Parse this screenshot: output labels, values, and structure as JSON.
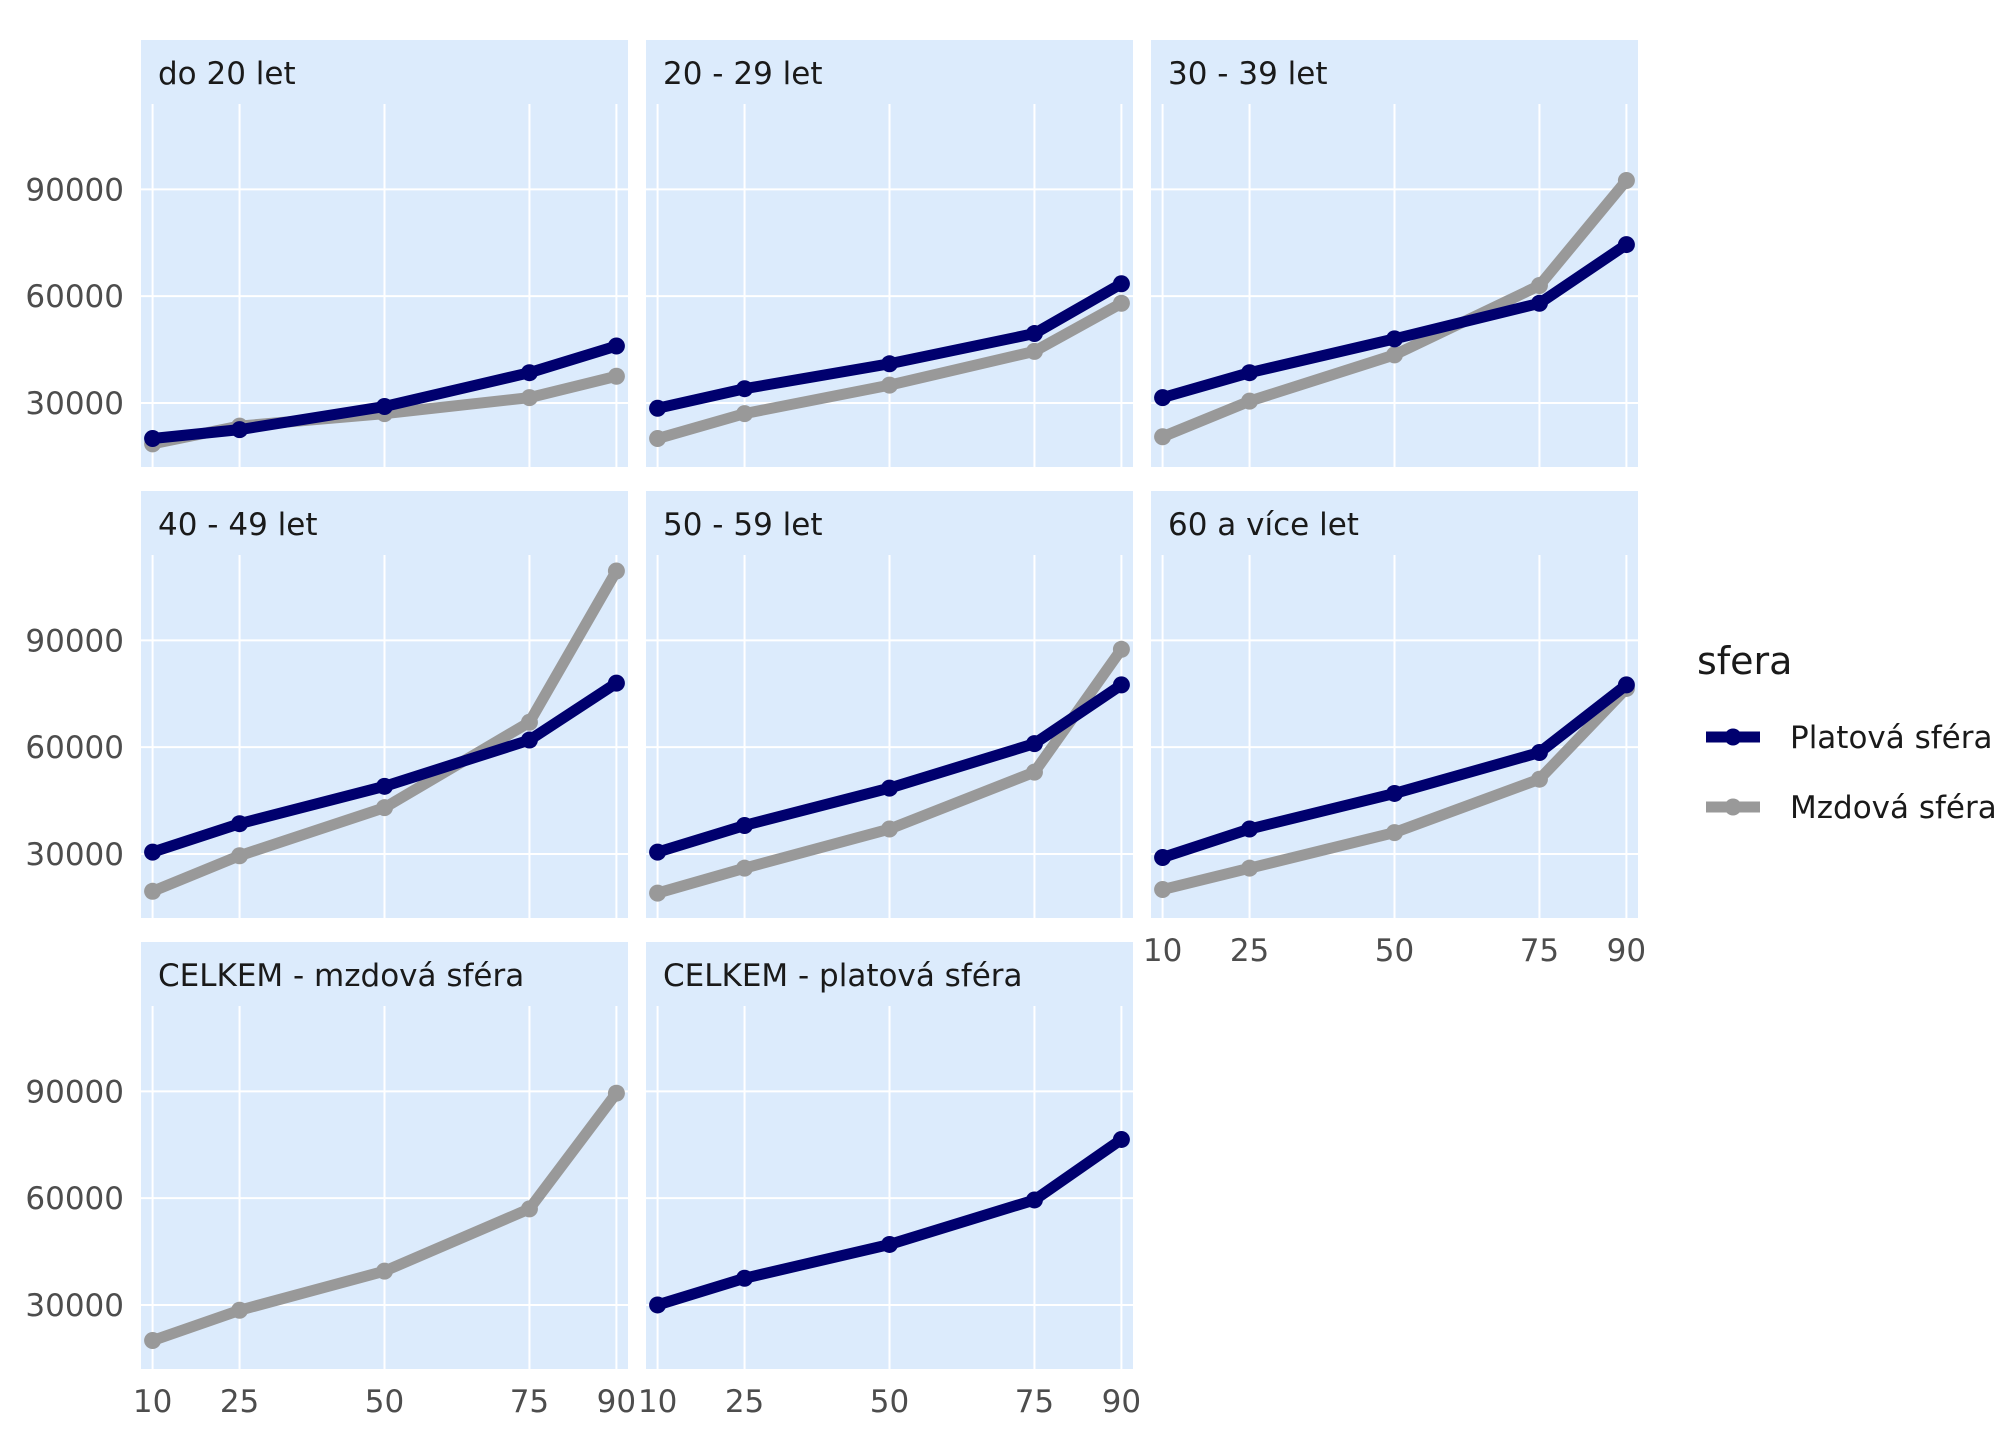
{
  "chart_data": {
    "type": "line",
    "facet": "small-multiples",
    "x": [
      10,
      25,
      50,
      75,
      90
    ],
    "x_ticks": [
      "10",
      "25",
      "50",
      "75",
      "90"
    ],
    "y_ticks": [
      "30000",
      "60000",
      "90000"
    ],
    "y_tick_values": [
      30000,
      60000,
      90000
    ],
    "xlim": [
      8,
      92
    ],
    "ylim": [
      12000,
      114000
    ],
    "grid": true,
    "legend": {
      "title": "sfera",
      "position": "right",
      "entries": [
        {
          "key": "platova",
          "label": "Platová sféra",
          "color": "#00006e"
        },
        {
          "key": "mzdova",
          "label": "Mzdová sféra",
          "color": "#999999"
        }
      ]
    },
    "panel_background": "#dcebfc",
    "panels": [
      {
        "title": "do 20 let",
        "series": [
          {
            "key": "mzdova",
            "values": [
              18500,
              23500,
              27000,
              31500,
              37500
            ]
          },
          {
            "key": "platova",
            "values": [
              20000,
              22500,
              29000,
              38500,
              46000
            ]
          }
        ]
      },
      {
        "title": "20 - 29 let",
        "series": [
          {
            "key": "mzdova",
            "values": [
              20000,
              27000,
              35000,
              44500,
              58000
            ]
          },
          {
            "key": "platova",
            "values": [
              28500,
              34000,
              41000,
              49500,
              63500
            ]
          }
        ]
      },
      {
        "title": "30 - 39 let",
        "series": [
          {
            "key": "mzdova",
            "values": [
              20500,
              30500,
              43500,
              63000,
              92500
            ]
          },
          {
            "key": "platova",
            "values": [
              31500,
              38500,
              48000,
              58000,
              74500
            ]
          }
        ]
      },
      {
        "title": "40 - 49 let",
        "series": [
          {
            "key": "mzdova",
            "values": [
              19500,
              29500,
              43000,
              67000,
              109500
            ]
          },
          {
            "key": "platova",
            "values": [
              30500,
              38500,
              49000,
              62000,
              78000
            ]
          }
        ]
      },
      {
        "title": "50 - 59 let",
        "series": [
          {
            "key": "mzdova",
            "values": [
              19000,
              26000,
              37000,
              53000,
              87500
            ]
          },
          {
            "key": "platova",
            "values": [
              30500,
              38000,
              48500,
              61000,
              77500
            ]
          }
        ]
      },
      {
        "title": "60 a více let",
        "series": [
          {
            "key": "mzdova",
            "values": [
              20000,
              26000,
              36000,
              51000,
              76500
            ]
          },
          {
            "key": "platova",
            "values": [
              29000,
              37000,
              47000,
              58500,
              77500
            ]
          }
        ]
      },
      {
        "title": "CELKEM - mzdová sféra",
        "series": [
          {
            "key": "mzdova",
            "values": [
              20000,
              28500,
              39500,
              57000,
              89500
            ]
          }
        ]
      },
      {
        "title": "CELKEM - platová sféra",
        "series": [
          {
            "key": "platova",
            "values": [
              30000,
              37500,
              47000,
              59500,
              76500
            ]
          }
        ]
      }
    ]
  }
}
